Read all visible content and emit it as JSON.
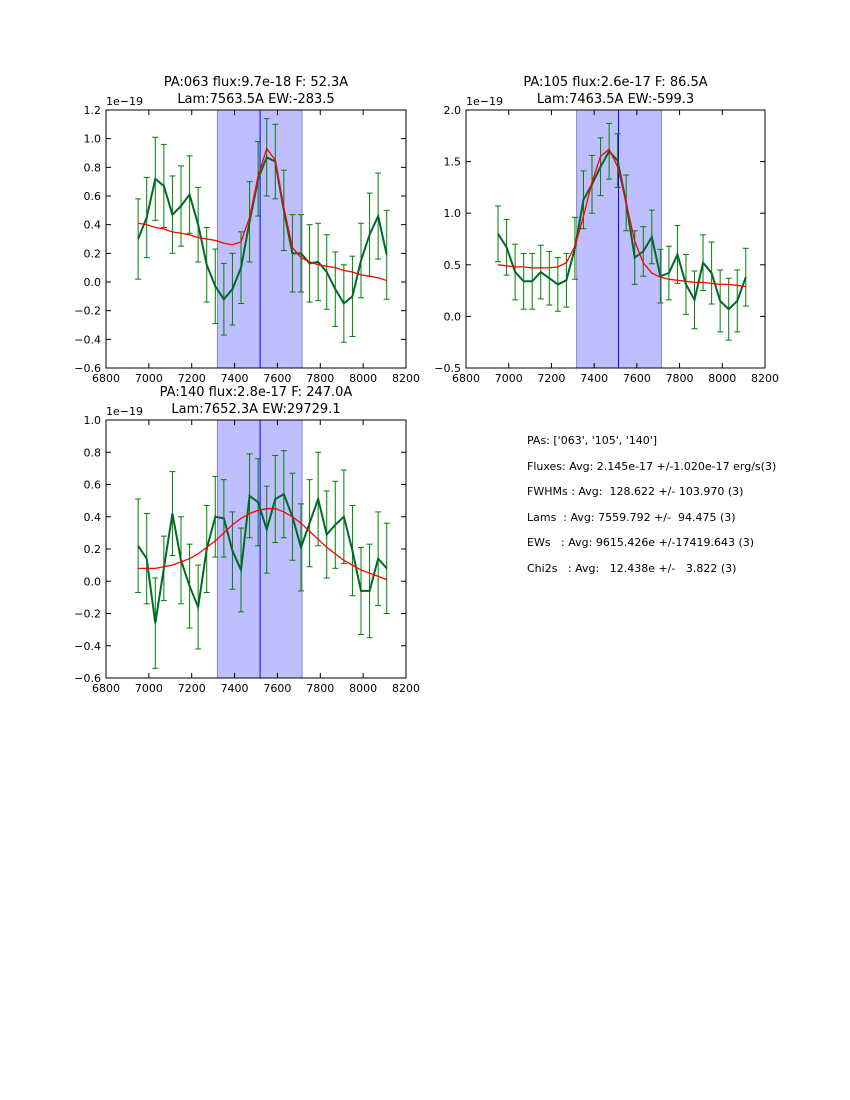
{
  "chart_data": [
    {
      "type": "line",
      "title_line1": "PA:063 flux:9.7e-18 F: 52.3A",
      "title_line2": "Lam:7563.5A EW:-283.5",
      "offset_label": "1e−19",
      "xlim": [
        6800,
        8200
      ],
      "ylim": [
        -0.6,
        1.2
      ],
      "xticks": [
        "6800",
        "7000",
        "7200",
        "7400",
        "7600",
        "7800",
        "8000",
        "8200"
      ],
      "yticks": [
        "−0.6",
        "−0.4",
        "−0.2",
        "0.0",
        "0.2",
        "0.4",
        "0.6",
        "0.8",
        "1.0",
        "1.2"
      ],
      "x_start": 6950,
      "x_step": 40,
      "data": [
        0.3,
        0.45,
        0.72,
        0.67,
        0.47,
        0.53,
        0.61,
        0.4,
        0.12,
        -0.03,
        -0.12,
        -0.05,
        0.1,
        0.42,
        0.72,
        0.87,
        0.84,
        0.5,
        0.2,
        0.2,
        0.13,
        0.14,
        0.07,
        -0.05,
        -0.15,
        -0.1,
        0.15,
        0.33,
        0.46,
        0.19
      ],
      "errors": [
        0.28,
        0.28,
        0.29,
        0.29,
        0.27,
        0.28,
        0.27,
        0.26,
        0.26,
        0.26,
        0.25,
        0.25,
        0.25,
        0.28,
        0.26,
        0.27,
        0.26,
        0.28,
        0.27,
        0.27,
        0.27,
        0.27,
        0.26,
        0.26,
        0.27,
        0.28,
        0.26,
        0.29,
        0.3,
        0.31
      ],
      "model": [
        0.41,
        0.4,
        0.38,
        0.37,
        0.35,
        0.34,
        0.33,
        0.31,
        0.3,
        0.29,
        0.27,
        0.26,
        0.28,
        0.45,
        0.74,
        0.93,
        0.85,
        0.52,
        0.24,
        0.17,
        0.14,
        0.12,
        0.11,
        0.1,
        0.08,
        0.07,
        0.05,
        0.04,
        0.03,
        0.01
      ],
      "band": [
        7320,
        7715
      ],
      "center": 7519
    },
    {
      "type": "line",
      "title_line1": "PA:105 flux:2.6e-17 F: 86.5A",
      "title_line2": "Lam:7463.5A EW:-599.3",
      "offset_label": "1e−19",
      "xlim": [
        6800,
        8200
      ],
      "ylim": [
        -0.5,
        2.0
      ],
      "xticks": [
        "6800",
        "7000",
        "7200",
        "7400",
        "7600",
        "7800",
        "8000",
        "8200"
      ],
      "yticks": [
        "−0.5",
        "0.0",
        "0.5",
        "1.0",
        "1.5",
        "2.0"
      ],
      "x_start": 6950,
      "x_step": 40,
      "data": [
        0.8,
        0.67,
        0.43,
        0.34,
        0.34,
        0.43,
        0.37,
        0.31,
        0.35,
        0.66,
        1.13,
        1.28,
        1.45,
        1.6,
        1.51,
        1.1,
        0.57,
        0.63,
        0.77,
        0.39,
        0.42,
        0.6,
        0.31,
        0.16,
        0.52,
        0.42,
        0.15,
        0.07,
        0.15,
        0.38
      ],
      "errors": [
        0.27,
        0.27,
        0.27,
        0.27,
        0.27,
        0.26,
        0.26,
        0.26,
        0.26,
        0.3,
        0.28,
        0.28,
        0.28,
        0.27,
        0.26,
        0.27,
        0.26,
        0.24,
        0.26,
        0.26,
        0.26,
        0.28,
        0.29,
        0.28,
        0.27,
        0.3,
        0.3,
        0.3,
        0.3,
        0.28
      ],
      "model": [
        0.5,
        0.49,
        0.48,
        0.48,
        0.47,
        0.47,
        0.47,
        0.48,
        0.52,
        0.68,
        0.97,
        1.3,
        1.55,
        1.62,
        1.45,
        1.1,
        0.73,
        0.52,
        0.42,
        0.38,
        0.36,
        0.35,
        0.34,
        0.33,
        0.33,
        0.32,
        0.31,
        0.31,
        0.3,
        0.29
      ],
      "band": [
        7318,
        7715
      ],
      "center": 7514
    },
    {
      "type": "line",
      "title_line1": "PA:140 flux:2.8e-17 F: 247.0A",
      "title_line2": "Lam:7652.3A EW:29729.1",
      "offset_label": "1e−19",
      "xlim": [
        6800,
        8200
      ],
      "ylim": [
        -0.6,
        1.0
      ],
      "xticks": [
        "6800",
        "7000",
        "7200",
        "7400",
        "7600",
        "7800",
        "8000",
        "8200"
      ],
      "yticks": [
        "−0.6",
        "−0.4",
        "−0.2",
        "0.0",
        "0.2",
        "0.4",
        "0.6",
        "0.8",
        "1.0"
      ],
      "x_start": 6950,
      "x_step": 40,
      "data": [
        0.22,
        0.14,
        -0.26,
        0.08,
        0.42,
        0.13,
        -0.03,
        -0.16,
        0.2,
        0.4,
        0.39,
        0.19,
        0.07,
        0.53,
        0.49,
        0.32,
        0.51,
        0.54,
        0.4,
        0.21,
        0.36,
        0.51,
        0.29,
        0.35,
        0.4,
        0.19,
        -0.06,
        -0.06,
        0.14,
        0.08
      ],
      "errors": [
        0.29,
        0.28,
        0.28,
        0.2,
        0.26,
        0.27,
        0.26,
        0.26,
        0.27,
        0.25,
        0.24,
        0.24,
        0.26,
        0.26,
        0.27,
        0.27,
        0.27,
        0.27,
        0.27,
        0.27,
        0.27,
        0.29,
        0.27,
        0.27,
        0.29,
        0.28,
        0.27,
        0.29,
        0.29,
        0.28
      ],
      "model": [
        0.08,
        0.08,
        0.08,
        0.09,
        0.1,
        0.12,
        0.14,
        0.17,
        0.21,
        0.25,
        0.3,
        0.35,
        0.39,
        0.42,
        0.44,
        0.45,
        0.45,
        0.43,
        0.4,
        0.36,
        0.31,
        0.26,
        0.21,
        0.17,
        0.13,
        0.1,
        0.07,
        0.05,
        0.03,
        0.01
      ],
      "band": [
        7320,
        7715
      ],
      "center": 7519
    }
  ],
  "colors": {
    "data_line": "#00692a",
    "error_bar": "#008000",
    "model": "#ff0000",
    "band_fill": "#bfbfff",
    "band_edge": "#8888bb",
    "center_line": "#0000ff"
  },
  "summary": {
    "pas": "PAs: ['063', '105', '140']",
    "fluxes": "Fluxes: Avg: 2.145e-17 +/-1.020e-17 erg/s(3)",
    "fwhms": "FWHMs : Avg:  128.622 +/- 103.970 (3)",
    "lams": "Lams  : Avg: 7559.792 +/-  94.475 (3)",
    "ews": "EWs   : Avg: 9615.426e +/-17419.643 (3)",
    "chi2s": "Chi2s   : Avg:   12.438e +/-   3.822 (3)"
  }
}
